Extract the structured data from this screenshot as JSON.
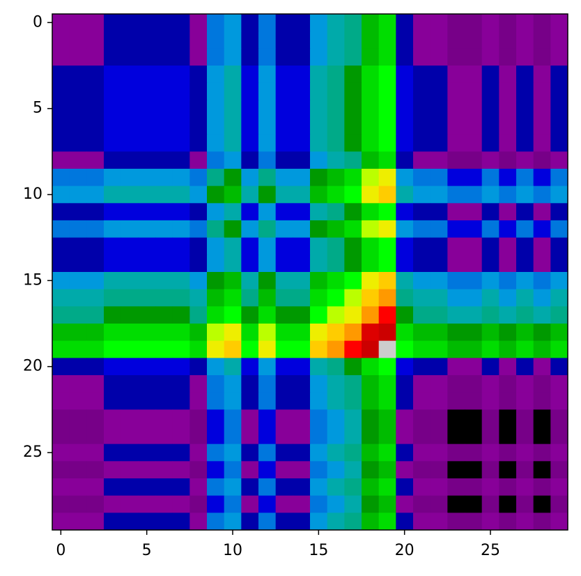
{
  "chart_data": {
    "type": "heatmap",
    "colormap": "nipy_spectral",
    "xlim": [
      -0.5,
      29.5
    ],
    "ylim": [
      29.5,
      -0.5
    ],
    "xticks": [
      0,
      5,
      10,
      15,
      20,
      25
    ],
    "yticks": [
      0,
      5,
      10,
      15,
      20,
      25
    ],
    "values": [
      [
        10,
        10,
        10,
        15,
        15,
        15,
        15,
        15,
        10,
        25,
        30,
        15,
        25,
        15,
        15,
        30,
        35,
        40,
        50,
        55,
        15,
        10,
        10,
        5,
        5,
        10,
        5,
        10,
        5,
        10
      ],
      [
        10,
        10,
        10,
        15,
        15,
        15,
        15,
        15,
        10,
        25,
        30,
        15,
        25,
        15,
        15,
        30,
        35,
        40,
        50,
        55,
        15,
        10,
        10,
        5,
        5,
        10,
        5,
        10,
        5,
        10
      ],
      [
        10,
        10,
        10,
        15,
        15,
        15,
        15,
        15,
        10,
        25,
        30,
        15,
        25,
        15,
        15,
        30,
        35,
        40,
        50,
        55,
        15,
        10,
        10,
        5,
        5,
        10,
        5,
        10,
        5,
        10
      ],
      [
        15,
        15,
        15,
        20,
        20,
        20,
        20,
        20,
        15,
        30,
        35,
        20,
        30,
        20,
        20,
        35,
        40,
        45,
        55,
        60,
        20,
        15,
        15,
        10,
        10,
        15,
        10,
        15,
        10,
        15
      ],
      [
        15,
        15,
        15,
        20,
        20,
        20,
        20,
        20,
        15,
        30,
        35,
        20,
        30,
        20,
        20,
        35,
        40,
        45,
        55,
        60,
        20,
        15,
        15,
        10,
        10,
        15,
        10,
        15,
        10,
        15
      ],
      [
        15,
        15,
        15,
        20,
        20,
        20,
        20,
        20,
        15,
        30,
        35,
        20,
        30,
        20,
        20,
        35,
        40,
        45,
        55,
        60,
        20,
        15,
        15,
        10,
        10,
        15,
        10,
        15,
        10,
        15
      ],
      [
        15,
        15,
        15,
        20,
        20,
        20,
        20,
        20,
        15,
        30,
        35,
        20,
        30,
        20,
        20,
        35,
        40,
        45,
        55,
        60,
        20,
        15,
        15,
        10,
        10,
        15,
        10,
        15,
        10,
        15
      ],
      [
        15,
        15,
        15,
        20,
        20,
        20,
        20,
        20,
        15,
        30,
        35,
        20,
        30,
        20,
        20,
        35,
        40,
        45,
        55,
        60,
        20,
        15,
        15,
        10,
        10,
        15,
        10,
        15,
        10,
        15
      ],
      [
        10,
        10,
        10,
        15,
        15,
        15,
        15,
        15,
        10,
        25,
        30,
        15,
        25,
        15,
        15,
        30,
        35,
        40,
        50,
        55,
        15,
        10,
        10,
        5,
        5,
        10,
        5,
        10,
        5,
        10
      ],
      [
        25,
        25,
        25,
        30,
        30,
        30,
        30,
        30,
        25,
        40,
        45,
        30,
        40,
        30,
        30,
        45,
        50,
        55,
        65,
        70,
        30,
        25,
        25,
        20,
        20,
        25,
        20,
        25,
        20,
        25
      ],
      [
        30,
        30,
        30,
        35,
        35,
        35,
        35,
        35,
        30,
        45,
        50,
        35,
        45,
        35,
        35,
        50,
        55,
        60,
        70,
        75,
        35,
        30,
        30,
        25,
        25,
        30,
        25,
        30,
        25,
        30
      ],
      [
        15,
        15,
        15,
        20,
        20,
        20,
        20,
        20,
        15,
        30,
        35,
        20,
        30,
        20,
        20,
        35,
        40,
        45,
        55,
        60,
        20,
        15,
        15,
        10,
        10,
        15,
        10,
        15,
        10,
        15
      ],
      [
        25,
        25,
        25,
        30,
        30,
        30,
        30,
        30,
        25,
        40,
        45,
        30,
        40,
        30,
        30,
        45,
        50,
        55,
        65,
        70,
        30,
        25,
        25,
        20,
        20,
        25,
        20,
        25,
        20,
        25
      ],
      [
        15,
        15,
        15,
        20,
        20,
        20,
        20,
        20,
        15,
        30,
        35,
        20,
        30,
        20,
        20,
        35,
        40,
        45,
        55,
        60,
        20,
        15,
        15,
        10,
        10,
        15,
        10,
        15,
        10,
        15
      ],
      [
        15,
        15,
        15,
        20,
        20,
        20,
        20,
        20,
        15,
        30,
        35,
        20,
        30,
        20,
        20,
        35,
        40,
        45,
        55,
        60,
        20,
        15,
        15,
        10,
        10,
        15,
        10,
        15,
        10,
        15
      ],
      [
        30,
        30,
        30,
        35,
        35,
        35,
        35,
        35,
        30,
        45,
        50,
        35,
        45,
        35,
        35,
        50,
        55,
        60,
        70,
        75,
        35,
        30,
        30,
        25,
        25,
        30,
        25,
        30,
        25,
        30
      ],
      [
        35,
        35,
        35,
        40,
        40,
        40,
        40,
        40,
        35,
        50,
        55,
        40,
        50,
        40,
        40,
        55,
        60,
        65,
        75,
        80,
        40,
        35,
        35,
        30,
        30,
        35,
        30,
        35,
        30,
        35
      ],
      [
        40,
        40,
        40,
        45,
        45,
        45,
        45,
        45,
        40,
        55,
        60,
        45,
        55,
        45,
        45,
        60,
        65,
        70,
        80,
        85,
        45,
        40,
        40,
        35,
        35,
        40,
        35,
        40,
        35,
        40
      ],
      [
        50,
        50,
        50,
        55,
        55,
        55,
        55,
        55,
        50,
        65,
        70,
        55,
        65,
        55,
        55,
        70,
        75,
        80,
        90,
        95,
        55,
        50,
        50,
        45,
        45,
        50,
        45,
        50,
        45,
        50
      ],
      [
        55,
        55,
        55,
        60,
        60,
        60,
        60,
        60,
        55,
        70,
        75,
        60,
        70,
        60,
        60,
        75,
        80,
        85,
        95,
        100,
        60,
        55,
        55,
        50,
        50,
        55,
        50,
        55,
        50,
        55
      ],
      [
        15,
        15,
        15,
        20,
        20,
        20,
        20,
        20,
        15,
        30,
        35,
        20,
        30,
        20,
        20,
        35,
        40,
        45,
        55,
        60,
        20,
        15,
        15,
        10,
        10,
        15,
        10,
        15,
        10,
        15
      ],
      [
        10,
        10,
        10,
        15,
        15,
        15,
        15,
        15,
        10,
        25,
        30,
        15,
        25,
        15,
        15,
        30,
        35,
        40,
        50,
        55,
        15,
        10,
        10,
        5,
        5,
        10,
        5,
        10,
        5,
        10
      ],
      [
        10,
        10,
        10,
        15,
        15,
        15,
        15,
        15,
        10,
        25,
        30,
        15,
        25,
        15,
        15,
        30,
        35,
        40,
        50,
        55,
        15,
        10,
        10,
        5,
        5,
        10,
        5,
        10,
        5,
        10
      ],
      [
        5,
        5,
        5,
        10,
        10,
        10,
        10,
        10,
        5,
        20,
        25,
        10,
        20,
        10,
        10,
        25,
        30,
        35,
        45,
        50,
        10,
        5,
        5,
        0,
        0,
        5,
        0,
        5,
        0,
        5
      ],
      [
        5,
        5,
        5,
        10,
        10,
        10,
        10,
        10,
        5,
        20,
        25,
        10,
        20,
        10,
        10,
        25,
        30,
        35,
        45,
        50,
        10,
        5,
        5,
        0,
        0,
        5,
        0,
        5,
        0,
        5
      ],
      [
        10,
        10,
        10,
        15,
        15,
        15,
        15,
        15,
        10,
        25,
        30,
        15,
        25,
        15,
        15,
        30,
        35,
        40,
        50,
        55,
        15,
        10,
        10,
        5,
        5,
        10,
        5,
        10,
        5,
        10
      ],
      [
        5,
        5,
        5,
        10,
        10,
        10,
        10,
        10,
        5,
        20,
        25,
        10,
        20,
        10,
        10,
        25,
        30,
        35,
        45,
        50,
        10,
        5,
        5,
        0,
        0,
        5,
        0,
        5,
        0,
        5
      ],
      [
        10,
        10,
        10,
        15,
        15,
        15,
        15,
        15,
        10,
        25,
        30,
        15,
        25,
        15,
        15,
        30,
        35,
        40,
        50,
        55,
        15,
        10,
        10,
        5,
        5,
        10,
        5,
        10,
        5,
        10
      ],
      [
        5,
        5,
        5,
        10,
        10,
        10,
        10,
        10,
        5,
        20,
        25,
        10,
        20,
        10,
        10,
        25,
        30,
        35,
        45,
        50,
        10,
        5,
        5,
        0,
        0,
        5,
        0,
        5,
        0,
        5
      ],
      [
        10,
        10,
        10,
        15,
        15,
        15,
        15,
        15,
        10,
        25,
        30,
        15,
        25,
        15,
        15,
        30,
        35,
        40,
        50,
        55,
        15,
        10,
        10,
        5,
        5,
        10,
        5,
        10,
        5,
        10
      ]
    ]
  }
}
